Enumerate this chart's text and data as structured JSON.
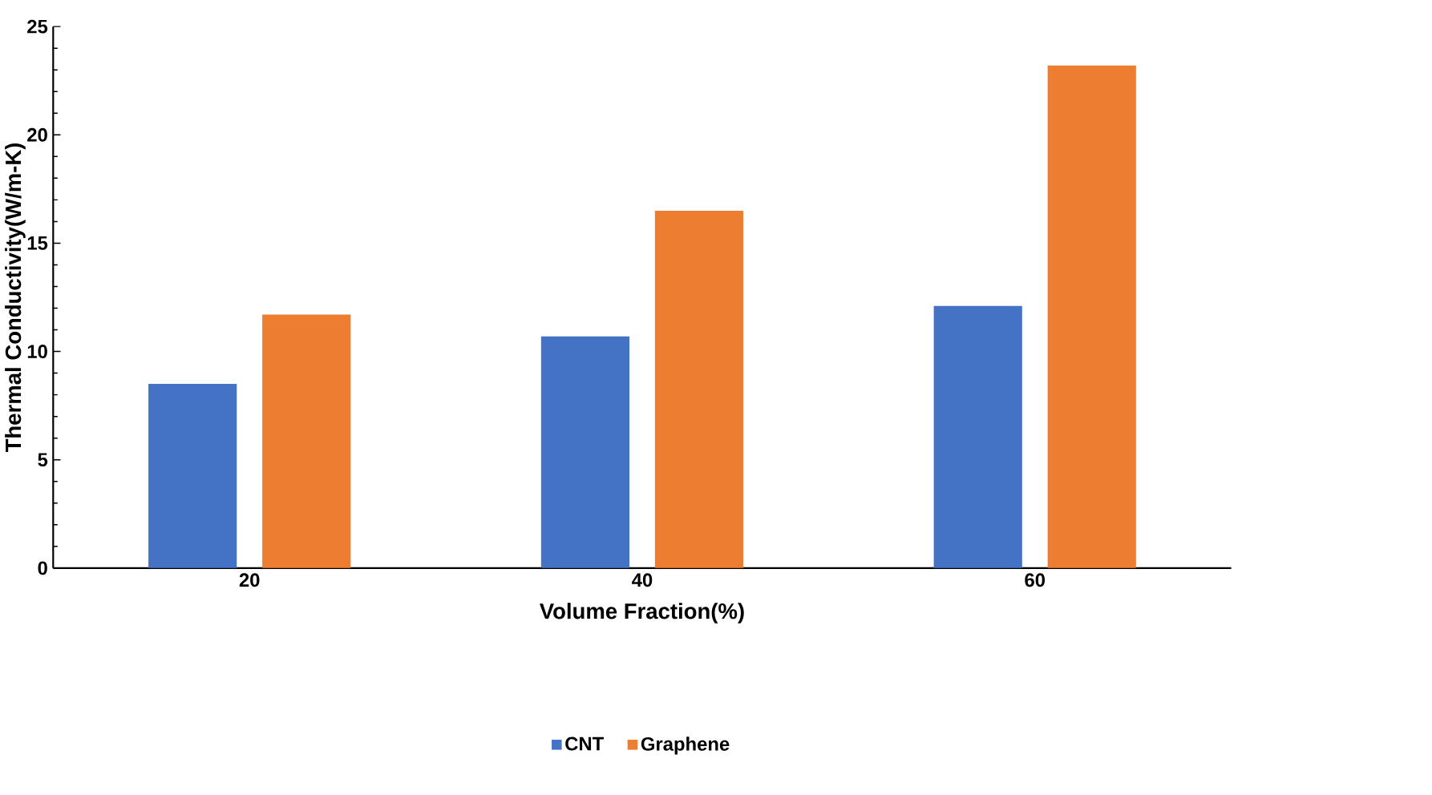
{
  "chart_data": {
    "type": "bar",
    "xlabel": "Volume Fraction(%)",
    "ylabel": "Thermal Conductivity(W/m-K)",
    "categories": [
      "20",
      "40",
      "60"
    ],
    "series": [
      {
        "name": "CNT",
        "color": "#4472c4",
        "values": [
          8.5,
          10.7,
          12.1
        ]
      },
      {
        "name": "Graphene",
        "color": "#ed7d31",
        "values": [
          11.7,
          16.5,
          23.2
        ]
      }
    ],
    "ylim": [
      0,
      25
    ],
    "yticks": [
      0,
      5,
      10,
      15,
      20,
      25
    ],
    "grid": false,
    "legend": "bottom"
  }
}
